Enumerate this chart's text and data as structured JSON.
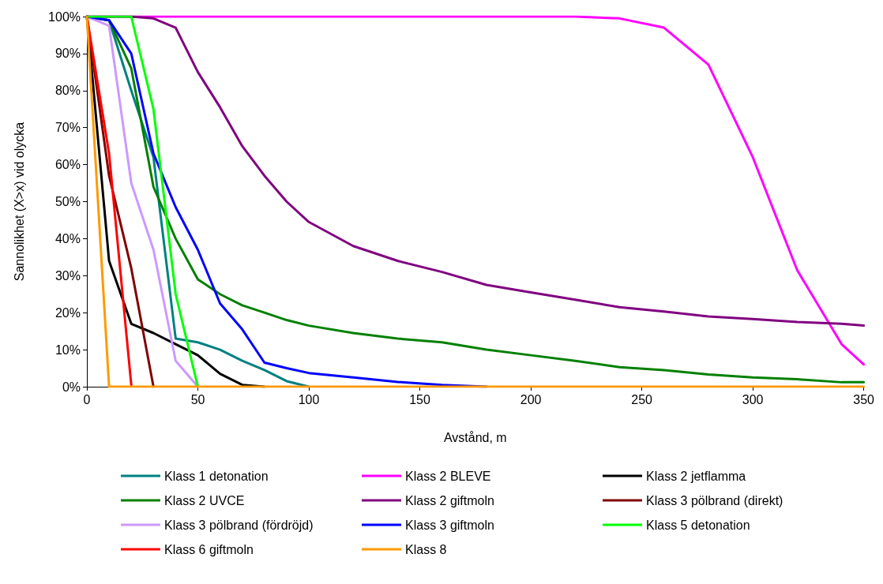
{
  "chart_data": {
    "type": "line",
    "xlabel": "Avstånd, m",
    "ylabel": "Sannolikhet (X>x) vid olycka",
    "x": [
      0,
      10,
      20,
      30,
      40,
      50,
      60,
      70,
      80,
      90,
      100,
      120,
      140,
      160,
      180,
      200,
      220,
      240,
      260,
      280,
      300,
      320,
      340,
      350
    ],
    "xlim": [
      0,
      350
    ],
    "xticks": [
      0,
      50,
      100,
      150,
      200,
      250,
      300,
      350
    ],
    "ylim": [
      0,
      100
    ],
    "yticks": [
      {
        "value": 0,
        "label": "0%"
      },
      {
        "value": 10,
        "label": "10%"
      },
      {
        "value": 20,
        "label": "20%"
      },
      {
        "value": 30,
        "label": "30%"
      },
      {
        "value": 40,
        "label": "40%"
      },
      {
        "value": 50,
        "label": "50%"
      },
      {
        "value": 60,
        "label": "60%"
      },
      {
        "value": 70,
        "label": "70%"
      },
      {
        "value": 80,
        "label": "80%"
      },
      {
        "value": 90,
        "label": "90%"
      },
      {
        "value": 100,
        "label": "100%"
      }
    ],
    "grid": false,
    "legend": "bottom",
    "marker": "none",
    "line_style": "solid",
    "series": [
      {
        "name": "Klass 1 detonation",
        "color": "#008080",
        "values": [
          100,
          99,
          80,
          62,
          13,
          12,
          10,
          7,
          4.5,
          1.5,
          0,
          null,
          null,
          null,
          null,
          null,
          null,
          null,
          null,
          null,
          null,
          null,
          null,
          null
        ]
      },
      {
        "name": "Klass 2 BLEVE",
        "color": "#ff00ff",
        "values": [
          100,
          100,
          100,
          100,
          100,
          100,
          100,
          100,
          100,
          100,
          100,
          100,
          100,
          100,
          100,
          100,
          100,
          99.5,
          97,
          87,
          62,
          31.5,
          11.5,
          6
        ]
      },
      {
        "name": "Klass 2 jetflamma",
        "color": "#000000",
        "values": [
          100,
          34,
          17,
          14.5,
          11.5,
          8.5,
          3.5,
          0.5,
          0,
          null,
          null,
          null,
          null,
          null,
          null,
          null,
          null,
          null,
          null,
          null,
          null,
          null,
          null,
          null
        ]
      },
      {
        "name": "Klass 2 UVCE",
        "color": "#008000",
        "values": [
          100,
          99,
          86,
          54,
          40,
          29,
          25,
          22,
          20,
          18,
          16.5,
          14.5,
          13,
          12,
          10,
          8.5,
          7,
          5.3,
          4.5,
          3.3,
          2.5,
          2,
          1.2,
          1.2
        ]
      },
      {
        "name": "Klass 2 giftmoln",
        "color": "#800080",
        "values": [
          100,
          100,
          100,
          99.5,
          97,
          85,
          75.5,
          65,
          57,
          50,
          44.5,
          38,
          34,
          31,
          27.5,
          25.5,
          23.5,
          21.5,
          20.3,
          19,
          18.3,
          17.5,
          17,
          16.5
        ]
      },
      {
        "name": "Klass 3 pölbrand (direkt)",
        "color": "#800000",
        "values": [
          100,
          57,
          32,
          0,
          null,
          null,
          null,
          null,
          null,
          null,
          null,
          null,
          null,
          null,
          null,
          null,
          null,
          null,
          null,
          null,
          null,
          null,
          null,
          null
        ]
      },
      {
        "name": "Klass 3 pölbrand (fördröjd)",
        "color": "#cc99ff",
        "values": [
          100,
          97.5,
          55,
          37,
          7,
          0,
          null,
          null,
          null,
          null,
          null,
          null,
          null,
          null,
          null,
          null,
          null,
          null,
          null,
          null,
          null,
          null,
          null,
          null
        ]
      },
      {
        "name": "Klass 3 giftmoln",
        "color": "#0000ff",
        "values": [
          100,
          99,
          90,
          63,
          48.5,
          37,
          22.5,
          15.5,
          6.5,
          5,
          3.7,
          2.5,
          1.3,
          0.5,
          0,
          null,
          null,
          null,
          null,
          null,
          null,
          null,
          null,
          null
        ]
      },
      {
        "name": "Klass 5 detonation",
        "color": "#00ff00",
        "values": [
          100,
          100,
          100,
          75,
          25,
          0,
          null,
          null,
          null,
          null,
          null,
          null,
          null,
          null,
          null,
          null,
          null,
          null,
          null,
          null,
          null,
          null,
          null,
          null
        ]
      },
      {
        "name": "Klass 6 giftmoln",
        "color": "#ff0000",
        "values": [
          100,
          63,
          0.5,
          null,
          null,
          null,
          null,
          null,
          null,
          null,
          null,
          null,
          null,
          null,
          null,
          null,
          null,
          null,
          null,
          null,
          null,
          null,
          null,
          null
        ]
      },
      {
        "name": "Klass 8",
        "color": "#ff9900",
        "values": [
          100,
          0,
          0,
          0,
          0,
          0,
          0,
          0,
          0,
          0,
          0,
          0,
          0,
          0,
          0,
          0,
          0,
          0,
          0,
          0,
          0,
          0,
          0,
          0
        ]
      }
    ]
  }
}
